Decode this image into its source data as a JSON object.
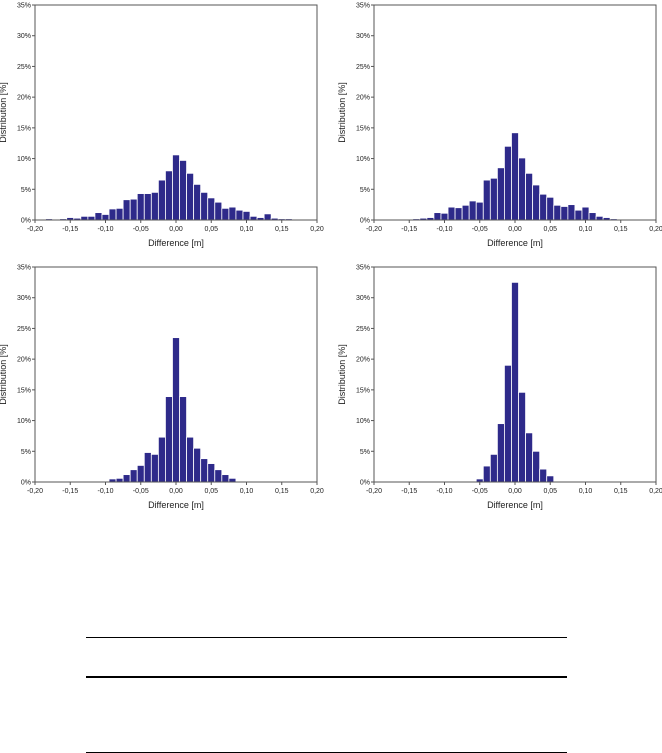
{
  "colors": {
    "bar": "#2e2a8a",
    "bar_edge": "#ffffff",
    "axis": "#555555",
    "text": "#222222"
  },
  "chart_data": [
    {
      "type": "bar",
      "xlabel": "Difference [m]",
      "ylabel": "Distribution [%]",
      "xlim": [
        -0.2,
        0.2
      ],
      "ylim": [
        0,
        35
      ],
      "x_ticks": [
        "-0,20",
        "-0,15",
        "-0,10",
        "-0,05",
        "0,00",
        "0,05",
        "0,10",
        "0,15",
        "0,20"
      ],
      "y_ticks": [
        "0%",
        "5%",
        "10%",
        "15%",
        "20%",
        "25%",
        "30%",
        "35%"
      ],
      "grid": false,
      "bin_width": 0.01,
      "x": [
        -0.19,
        -0.18,
        -0.17,
        -0.16,
        -0.15,
        -0.14,
        -0.13,
        -0.12,
        -0.11,
        -0.1,
        -0.09,
        -0.08,
        -0.07,
        -0.06,
        -0.05,
        -0.04,
        -0.03,
        -0.02,
        -0.01,
        0.0,
        0.01,
        0.02,
        0.03,
        0.04,
        0.05,
        0.06,
        0.07,
        0.08,
        0.09,
        0.1,
        0.11,
        0.12,
        0.13,
        0.14,
        0.15,
        0.16,
        0.17,
        0.18,
        0.19
      ],
      "values": [
        0.1,
        0.2,
        0.1,
        0.2,
        0.4,
        0.3,
        0.6,
        0.6,
        1.2,
        0.9,
        1.8,
        1.9,
        3.3,
        3.4,
        4.3,
        4.3,
        4.5,
        6.5,
        8.0,
        10.6,
        9.7,
        7.6,
        5.8,
        4.5,
        3.6,
        2.9,
        1.9,
        2.1,
        1.6,
        1.4,
        0.6,
        0.4,
        1.0,
        0.3,
        0.2,
        0.2,
        0.1,
        0.1,
        0.1
      ]
    },
    {
      "type": "bar",
      "xlabel": "Difference [m]",
      "ylabel": "Distribution [%]",
      "xlim": [
        -0.2,
        0.2
      ],
      "ylim": [
        0,
        35
      ],
      "x_ticks": [
        "-0,20",
        "-0,15",
        "-0,10",
        "-0,05",
        "0,00",
        "0,05",
        "0,10",
        "0,15",
        "0,20"
      ],
      "y_ticks": [
        "0%",
        "5%",
        "10%",
        "15%",
        "20%",
        "25%",
        "30%",
        "35%"
      ],
      "grid": false,
      "bin_width": 0.01,
      "x": [
        -0.17,
        -0.16,
        -0.15,
        -0.14,
        -0.13,
        -0.12,
        -0.11,
        -0.1,
        -0.09,
        -0.08,
        -0.07,
        -0.06,
        -0.05,
        -0.04,
        -0.03,
        -0.02,
        -0.01,
        0.0,
        0.01,
        0.02,
        0.03,
        0.04,
        0.05,
        0.06,
        0.07,
        0.08,
        0.09,
        0.1,
        0.11,
        0.12,
        0.13,
        0.14
      ],
      "values": [
        0.1,
        0.1,
        0.1,
        0.2,
        0.3,
        0.4,
        1.2,
        1.1,
        2.1,
        2.0,
        2.4,
        3.1,
        2.9,
        6.5,
        6.8,
        8.5,
        12.0,
        14.2,
        10.1,
        7.6,
        5.7,
        4.2,
        3.7,
        2.4,
        2.2,
        2.5,
        1.6,
        2.1,
        1.2,
        0.6,
        0.4,
        0.2
      ]
    },
    {
      "type": "bar",
      "xlabel": "Difference [m]",
      "ylabel": "Distribution [%]",
      "xlim": [
        -0.2,
        0.2
      ],
      "ylim": [
        0,
        35
      ],
      "x_ticks": [
        "-0,20",
        "-0,15",
        "-0,10",
        "-0,05",
        "0,00",
        "0,05",
        "0,10",
        "0,15",
        "0,20"
      ],
      "y_ticks": [
        "0%",
        "5%",
        "10%",
        "15%",
        "20%",
        "25%",
        "30%",
        "35%"
      ],
      "grid": false,
      "bin_width": 0.01,
      "x": [
        -0.09,
        -0.08,
        -0.07,
        -0.06,
        -0.05,
        -0.04,
        -0.03,
        -0.02,
        -0.01,
        0.0,
        0.01,
        0.02,
        0.03,
        0.04,
        0.05,
        0.06,
        0.07,
        0.08
      ],
      "values": [
        0.5,
        0.6,
        1.2,
        2.0,
        2.7,
        4.8,
        4.5,
        7.3,
        13.9,
        23.5,
        13.9,
        7.3,
        5.5,
        3.8,
        3.0,
        2.0,
        1.2,
        0.6
      ]
    },
    {
      "type": "bar",
      "xlabel": "Difference [m]",
      "ylabel": "Distribution [%]",
      "xlim": [
        -0.2,
        0.2
      ],
      "ylim": [
        0,
        35
      ],
      "x_ticks": [
        "-0,20",
        "-0,15",
        "-0,10",
        "-0,05",
        "0,00",
        "0,05",
        "0,10",
        "0,15",
        "0,20"
      ],
      "y_ticks": [
        "0%",
        "5%",
        "10%",
        "15%",
        "20%",
        "25%",
        "30%",
        "35%"
      ],
      "grid": false,
      "bin_width": 0.01,
      "x": [
        -0.05,
        -0.04,
        -0.03,
        -0.02,
        -0.01,
        0.0,
        0.01,
        0.02,
        0.03,
        0.04,
        0.05
      ],
      "values": [
        0.5,
        2.6,
        4.5,
        9.5,
        19.0,
        32.5,
        14.6,
        8.0,
        5.0,
        2.1,
        1.0
      ]
    }
  ]
}
